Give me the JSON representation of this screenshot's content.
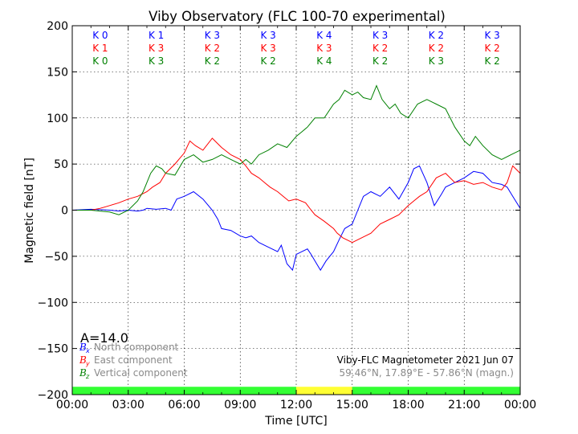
{
  "chart_data": {
    "type": "line",
    "title": "Viby Observatory (FLC 100-70 experimental)",
    "xlabel": "Time [UTC]",
    "ylabel": "Magnetic field [nT]",
    "xlim": [
      0,
      24
    ],
    "ylim": [
      -200,
      200
    ],
    "x_ticks": [
      0,
      3,
      6,
      9,
      12,
      15,
      18,
      21,
      24
    ],
    "x_tick_labels": [
      "00:00",
      "03:00",
      "06:00",
      "09:00",
      "12:00",
      "15:00",
      "18:00",
      "21:00",
      "00:00"
    ],
    "y_ticks": [
      -200,
      -150,
      -100,
      -50,
      0,
      50,
      100,
      150,
      200
    ],
    "y_tick_labels": [
      "−200",
      "−150",
      "−100",
      "−50",
      "0",
      "50",
      "100",
      "150",
      "200"
    ],
    "grid": true,
    "k_index": {
      "rows": [
        {
          "prefix": "K ",
          "color": "#0000ff",
          "values": [
            0,
            1,
            3,
            3,
            4,
            3,
            2,
            3
          ]
        },
        {
          "prefix": "K ",
          "color": "#ff0000",
          "values": [
            1,
            3,
            2,
            3,
            3,
            2,
            2,
            2
          ]
        },
        {
          "prefix": "K ",
          "color": "#008000",
          "values": [
            0,
            3,
            2,
            2,
            4,
            2,
            3,
            2
          ]
        }
      ]
    },
    "status_bar": [
      {
        "from": 0,
        "to": 12,
        "color": "#33ff33"
      },
      {
        "from": 12,
        "to": 15,
        "color": "#ffff33"
      },
      {
        "from": 15,
        "to": 24,
        "color": "#33ff33"
      }
    ],
    "series": [
      {
        "name": "North component",
        "symbol": "B",
        "subscript": "x",
        "color": "#0000ff",
        "x": [
          0,
          1,
          2,
          2.5,
          3,
          3.5,
          3.8,
          4,
          4.5,
          5,
          5.3,
          5.6,
          6,
          6.5,
          7,
          7.5,
          7.8,
          8,
          8.5,
          9,
          9.3,
          9.6,
          10,
          10.5,
          11,
          11.2,
          11.5,
          11.8,
          12,
          12.3,
          12.6,
          12.8,
          13,
          13.3,
          13.6,
          14,
          14.3,
          14.6,
          15,
          15.3,
          15.6,
          16,
          16.5,
          17,
          17.5,
          18,
          18.3,
          18.6,
          19,
          19.4,
          19.8,
          20,
          20.5,
          21,
          21.5,
          22,
          22.5,
          23,
          23.3,
          23.6,
          24
        ],
        "y": [
          0,
          1,
          0,
          -1,
          0,
          -1,
          0,
          2,
          1,
          2,
          0,
          12,
          15,
          20,
          12,
          0,
          -10,
          -20,
          -22,
          -28,
          -30,
          -28,
          -35,
          -40,
          -45,
          -38,
          -58,
          -65,
          -48,
          -45,
          -42,
          -48,
          -55,
          -65,
          -55,
          -45,
          -32,
          -20,
          -15,
          0,
          15,
          20,
          15,
          25,
          12,
          30,
          45,
          48,
          30,
          5,
          18,
          25,
          30,
          35,
          42,
          40,
          30,
          28,
          25,
          15,
          2
        ]
      },
      {
        "name": "East component",
        "symbol": "B",
        "subscript": "y",
        "color": "#ff0000",
        "x": [
          0,
          1,
          1.5,
          2,
          2.5,
          3,
          3.5,
          4,
          4.3,
          4.7,
          5,
          5.5,
          6,
          6.3,
          6.6,
          7,
          7.5,
          8,
          8.5,
          9,
          9.3,
          9.6,
          10,
          10.3,
          10.6,
          11,
          11.3,
          11.6,
          12,
          12.5,
          12.8,
          13,
          13.5,
          14,
          14.2,
          14.5,
          15,
          15.5,
          16,
          16.5,
          17,
          17.5,
          18,
          18.3,
          18.6,
          19,
          19.5,
          20,
          20.5,
          21,
          21.5,
          22,
          22.5,
          23,
          23.3,
          23.6,
          24
        ],
        "y": [
          0,
          0,
          2,
          5,
          8,
          12,
          15,
          20,
          25,
          30,
          40,
          50,
          62,
          75,
          70,
          65,
          78,
          68,
          60,
          55,
          48,
          40,
          35,
          30,
          25,
          20,
          15,
          10,
          12,
          8,
          0,
          -5,
          -12,
          -20,
          -25,
          -30,
          -35,
          -30,
          -25,
          -15,
          -10,
          -5,
          5,
          10,
          15,
          20,
          35,
          40,
          30,
          32,
          28,
          30,
          25,
          22,
          30,
          48,
          40
        ]
      },
      {
        "name": "Vertical component",
        "symbol": "B",
        "subscript": "z",
        "color": "#008000",
        "x": [
          0,
          1,
          2,
          2.5,
          3,
          3.5,
          3.8,
          4,
          4.2,
          4.5,
          4.8,
          5,
          5.5,
          6,
          6.5,
          7,
          7.5,
          8,
          8.5,
          9,
          9.3,
          9.6,
          10,
          10.5,
          11,
          11.5,
          12,
          12.3,
          12.6,
          13,
          13.5,
          14,
          14.3,
          14.6,
          15,
          15.3,
          15.6,
          16,
          16.3,
          16.6,
          17,
          17.3,
          17.6,
          18,
          18.5,
          19,
          19.5,
          20,
          20.5,
          21,
          21.3,
          21.6,
          22,
          22.5,
          23,
          23.5,
          24
        ],
        "y": [
          0,
          0,
          -2,
          -5,
          0,
          10,
          20,
          30,
          40,
          48,
          45,
          40,
          38,
          55,
          60,
          52,
          55,
          60,
          55,
          50,
          55,
          50,
          60,
          65,
          72,
          68,
          80,
          85,
          90,
          100,
          100,
          115,
          120,
          130,
          125,
          128,
          122,
          120,
          135,
          120,
          110,
          115,
          105,
          100,
          115,
          120,
          115,
          110,
          90,
          75,
          70,
          80,
          70,
          60,
          55,
          60,
          65
        ]
      }
    ],
    "annotations": {
      "a_index": "A=14.0",
      "station": "Viby-FLC Magnetometer 2021 Jun 07",
      "coords": "59.46°N, 17.89°E - 57.86°N (magn.)"
    }
  }
}
